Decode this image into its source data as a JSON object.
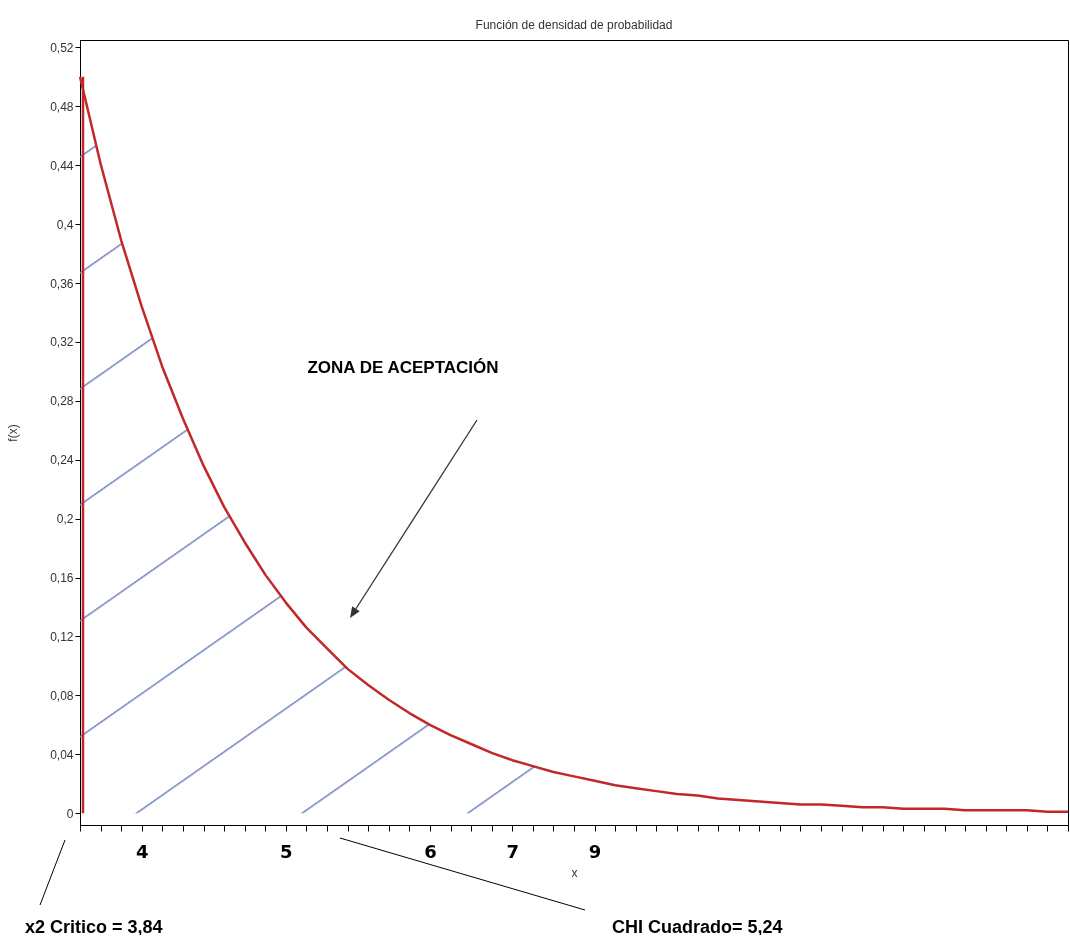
{
  "chart_data": {
    "type": "line",
    "title": "Función de densidad de probabilidad",
    "xlabel": "x",
    "ylabel": "f(x)",
    "categories": [
      null,
      null,
      null,
      "4",
      null,
      null,
      null,
      null,
      null,
      null,
      "5",
      null,
      null,
      null,
      null,
      null,
      null,
      "6",
      null,
      null,
      null,
      "7",
      null,
      null,
      null,
      "9",
      null,
      null,
      null,
      null,
      null,
      null,
      null,
      null,
      null,
      null,
      null,
      null,
      null,
      null,
      null,
      null,
      null,
      null,
      null,
      null,
      null,
      null,
      null
    ],
    "ylim": [
      -0.008,
      0.525
    ],
    "yticks": [
      {
        "value": 0,
        "label": "0"
      },
      {
        "value": 0.04,
        "label": "0,04"
      },
      {
        "value": 0.08,
        "label": "0,08"
      },
      {
        "value": 0.12,
        "label": "0,12"
      },
      {
        "value": 0.16,
        "label": "0,16"
      },
      {
        "value": 0.2,
        "label": "0,2"
      },
      {
        "value": 0.24,
        "label": "0,24"
      },
      {
        "value": 0.28,
        "label": "0,28"
      },
      {
        "value": 0.32,
        "label": "0,32"
      },
      {
        "value": 0.36,
        "label": "0,36"
      },
      {
        "value": 0.4,
        "label": "0,4"
      },
      {
        "value": 0.44,
        "label": "0,44"
      },
      {
        "value": 0.48,
        "label": "0,48"
      },
      {
        "value": 0.52,
        "label": "0,52"
      }
    ],
    "series": [
      {
        "type": "area",
        "color": "#6f82c2",
        "values": [
          0.5,
          0.441,
          0.389,
          0.344,
          0.303,
          0.268,
          0.236,
          0.208,
          0.184,
          0.162,
          0.143,
          0.126,
          0.112,
          0.098,
          0.087,
          0.077,
          0.068,
          0.06,
          0.053,
          0.047,
          0.041,
          0.036,
          0.032,
          0.028,
          0.025,
          0.022,
          null,
          null,
          null,
          null,
          null,
          null,
          null,
          null,
          null,
          null,
          null,
          null,
          null,
          null,
          null,
          null,
          null,
          null,
          null,
          null,
          null,
          null,
          null
        ]
      },
      {
        "color": "#c0282a",
        "values": [
          0.5,
          0.441,
          0.389,
          0.344,
          0.303,
          0.268,
          0.236,
          0.208,
          0.184,
          0.162,
          0.143,
          0.126,
          0.112,
          0.098,
          0.087,
          0.077,
          0.068,
          0.06,
          0.053,
          0.047,
          0.041,
          0.036,
          0.032,
          0.028,
          0.025,
          0.022,
          0.019,
          0.017,
          0.015,
          0.013,
          0.012,
          0.01,
          0.009,
          0.008,
          0.007,
          0.006,
          0.006,
          0.005,
          0.004,
          0.004,
          0.003,
          0.003,
          0.003,
          0.002,
          0.002,
          0.002,
          0.002,
          0.001,
          0.001
        ]
      }
    ],
    "annotations": [
      "ZONA DE ACEPTACIÓN",
      "x2 Critico = 3,84",
      "CHI Cuadrado= 5,24"
    ],
    "grid": false,
    "marker": "none",
    "line_style": "solid"
  }
}
